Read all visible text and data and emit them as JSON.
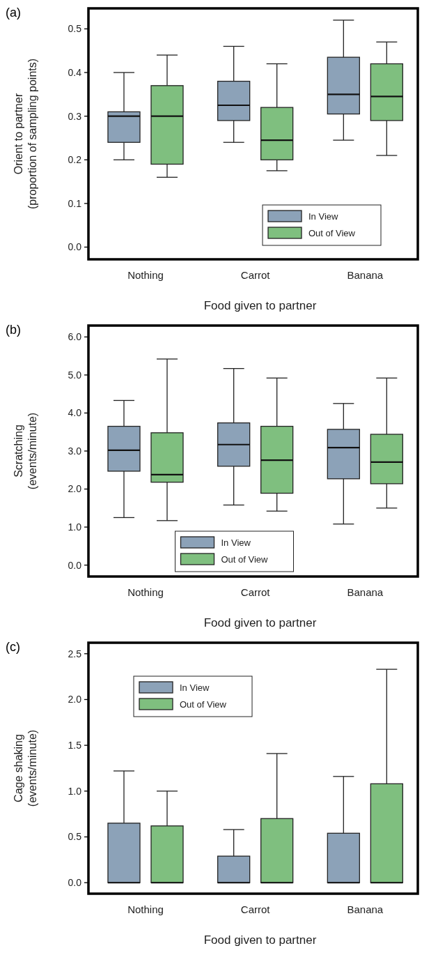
{
  "chart_data": [
    {
      "type": "box",
      "title": "(a)",
      "xlabel": "Food given to partner",
      "ylabel": "Orient to partner\n(proportion of sampling points)",
      "categories": [
        "Nothing",
        "Carrot",
        "Banana"
      ],
      "ylim": [
        -0.028,
        0.547
      ],
      "yticks": [
        {
          "value": 0,
          "label": "0.0"
        },
        0.1,
        0.2,
        0.3,
        0.4,
        0.5
      ],
      "legend": "bottom right",
      "series": [
        {
          "name": "In View",
          "color": "#8ca2b8",
          "boxes": [
            {
              "low": 0.2,
              "q1": 0.24,
              "median": 0.3,
              "q3": 0.31,
              "high": 0.4
            },
            {
              "low": 0.24,
              "q1": 0.29,
              "median": 0.325,
              "q3": 0.38,
              "high": 0.46
            },
            {
              "low": 0.245,
              "q1": 0.305,
              "median": 0.35,
              "q3": 0.435,
              "high": 0.52
            }
          ]
        },
        {
          "name": "Out of View",
          "color": "#7fbf7f",
          "boxes": [
            {
              "low": 0.16,
              "q1": 0.19,
              "median": 0.3,
              "q3": 0.37,
              "high": 0.44
            },
            {
              "low": 0.175,
              "q1": 0.2,
              "median": 0.245,
              "q3": 0.32,
              "high": 0.42
            },
            {
              "low": 0.21,
              "q1": 0.29,
              "median": 0.345,
              "q3": 0.42,
              "high": 0.47
            }
          ]
        }
      ]
    },
    {
      "type": "box",
      "title": "(b)",
      "xlabel": "Food given to partner",
      "ylabel": "Scratching\n(events/minute)",
      "categories": [
        "Nothing",
        "Carrot",
        "Banana"
      ],
      "ylim": [
        -0.3,
        6.3
      ],
      "yticks": [
        {
          "value": 0,
          "label": "0.0"
        },
        {
          "value": 1,
          "label": "1.0"
        },
        {
          "value": 2,
          "label": "2.0"
        },
        {
          "value": 3,
          "label": "3.0"
        },
        {
          "value": 4,
          "label": "4.0"
        },
        {
          "value": 5,
          "label": "5.0"
        },
        {
          "value": 6,
          "label": "6.0"
        }
      ],
      "legend": "bottom",
      "series": [
        {
          "name": "In View",
          "color": "#8ca2b8",
          "boxes": [
            {
              "low": 1.25,
              "q1": 2.47,
              "median": 3.02,
              "q3": 3.65,
              "high": 4.33
            },
            {
              "low": 1.58,
              "q1": 2.6,
              "median": 3.17,
              "q3": 3.74,
              "high": 5.17
            },
            {
              "low": 1.08,
              "q1": 2.27,
              "median": 3.09,
              "q3": 3.57,
              "high": 4.25
            }
          ]
        },
        {
          "name": "Out of View",
          "color": "#7fbf7f",
          "boxes": [
            {
              "low": 1.17,
              "q1": 2.18,
              "median": 2.38,
              "q3": 3.48,
              "high": 5.42
            },
            {
              "low": 1.42,
              "q1": 1.89,
              "median": 2.76,
              "q3": 3.65,
              "high": 4.92
            },
            {
              "low": 1.5,
              "q1": 2.14,
              "median": 2.71,
              "q3": 3.44,
              "high": 4.92
            }
          ]
        }
      ]
    },
    {
      "type": "box",
      "title": "(c)",
      "xlabel": "Food given to partner",
      "ylabel": "Cage shaking\n(events/minute)",
      "categories": [
        "Nothing",
        "Carrot",
        "Banana"
      ],
      "ylim": [
        -0.12,
        2.62
      ],
      "yticks": [
        {
          "value": 0,
          "label": "0.0"
        },
        0.5,
        {
          "value": 1,
          "label": "1.0"
        },
        1.5,
        {
          "value": 2,
          "label": "2.0"
        },
        2.5
      ],
      "legend": "top left",
      "series": [
        {
          "name": "In View",
          "color": "#8ca2b8",
          "boxes": [
            {
              "low": 0,
              "q1": 0,
              "median": 0,
              "q3": 0.65,
              "high": 1.22
            },
            {
              "low": 0,
              "q1": 0,
              "median": 0,
              "q3": 0.29,
              "high": 0.58
            },
            {
              "low": 0,
              "q1": 0,
              "median": 0,
              "q3": 0.54,
              "high": 1.16
            }
          ]
        },
        {
          "name": "Out of View",
          "color": "#7fbf7f",
          "boxes": [
            {
              "low": 0,
              "q1": 0,
              "median": 0,
              "q3": 0.62,
              "high": 1.0
            },
            {
              "low": 0,
              "q1": 0,
              "median": 0,
              "q3": 0.7,
              "high": 1.41
            },
            {
              "low": 0,
              "q1": 0,
              "median": 0,
              "q3": 1.08,
              "high": 2.33
            }
          ]
        }
      ]
    }
  ]
}
